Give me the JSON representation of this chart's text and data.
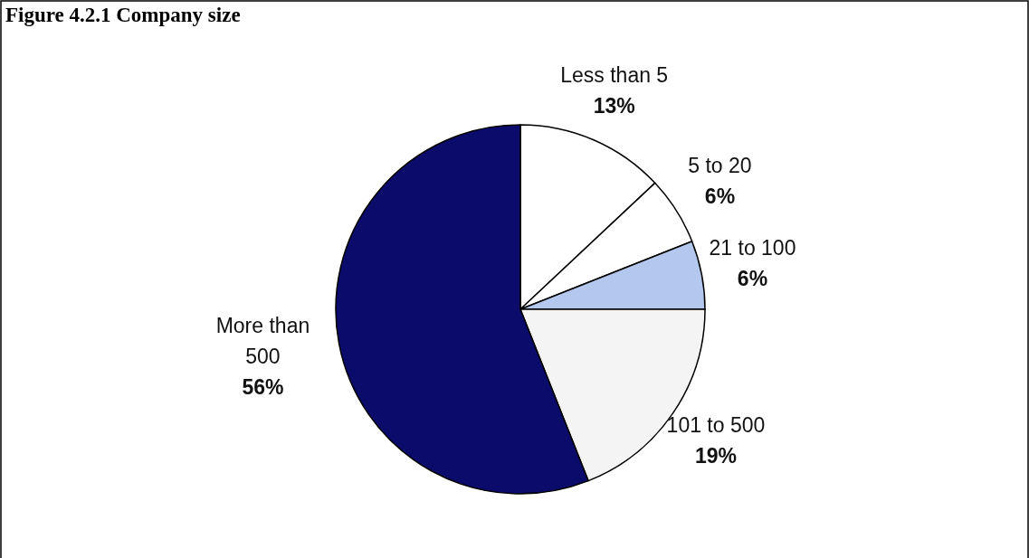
{
  "chart_data": {
    "type": "pie",
    "title": "Figure 4.2.1 Company size",
    "categories": [
      "Less than 5",
      "5 to 20",
      "21 to 100",
      "101 to 500",
      "More than 500"
    ],
    "values": [
      13,
      6,
      6,
      19,
      56
    ],
    "colors": [
      "#ffffff",
      "#ffffff",
      "#b4c8ee",
      "#f4f4f4",
      "#0b0b6b"
    ],
    "value_labels": [
      "13%",
      "6%",
      "6%",
      "19%",
      "56%"
    ]
  }
}
